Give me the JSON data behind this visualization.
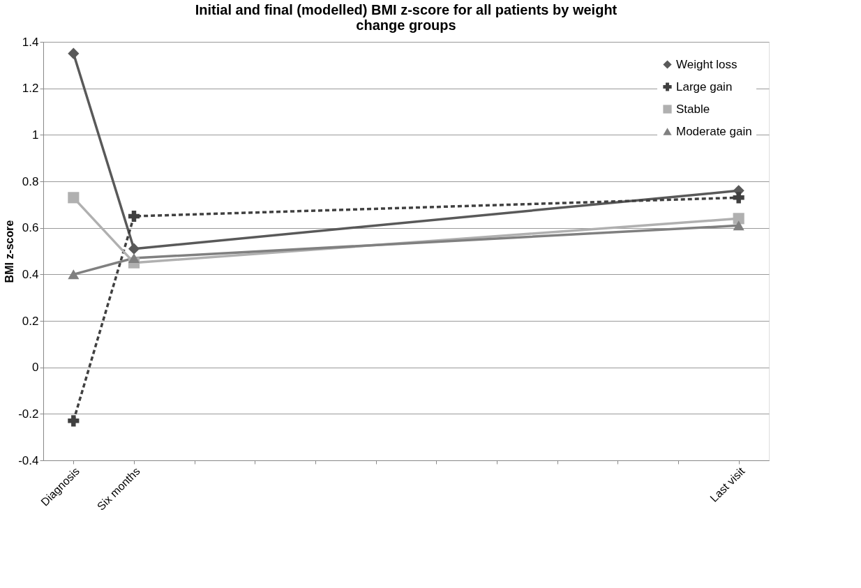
{
  "chart_data": {
    "type": "line",
    "title": "Initial and final (modelled) BMI z-score for all patients by weight change groups",
    "ylabel": "BMI z-score",
    "categories": [
      "Diagnosis",
      "Six months",
      null,
      null,
      null,
      null,
      null,
      null,
      null,
      null,
      null,
      "Last visit"
    ],
    "ylim": [
      -0.4,
      1.4
    ],
    "yticks": [
      -0.4,
      -0.2,
      0,
      0.2,
      0.4,
      0.6,
      0.8,
      1,
      1.2,
      1.4
    ],
    "grid": "y",
    "legend": "top right",
    "series": [
      {
        "name": "Weight loss",
        "color": "#595959",
        "marker": "diamond",
        "line_style": "solid",
        "values": [
          1.35,
          0.51,
          null,
          null,
          null,
          null,
          null,
          null,
          null,
          null,
          null,
          0.76
        ]
      },
      {
        "name": "Large gain",
        "color": "#404040",
        "marker": "cross",
        "line_style": "dashed",
        "values": [
          -0.23,
          0.65,
          null,
          null,
          null,
          null,
          null,
          null,
          null,
          null,
          null,
          0.73
        ]
      },
      {
        "name": "Stable",
        "color": "#b0b0b0",
        "marker": "square",
        "line_style": "solid",
        "values": [
          0.73,
          0.45,
          null,
          null,
          null,
          null,
          null,
          null,
          null,
          null,
          null,
          0.64
        ]
      },
      {
        "name": "Moderate gain",
        "color": "#808080",
        "marker": "triangle",
        "line_style": "solid",
        "values": [
          0.4,
          0.47,
          null,
          null,
          null,
          null,
          null,
          null,
          null,
          null,
          null,
          0.61
        ]
      }
    ]
  }
}
